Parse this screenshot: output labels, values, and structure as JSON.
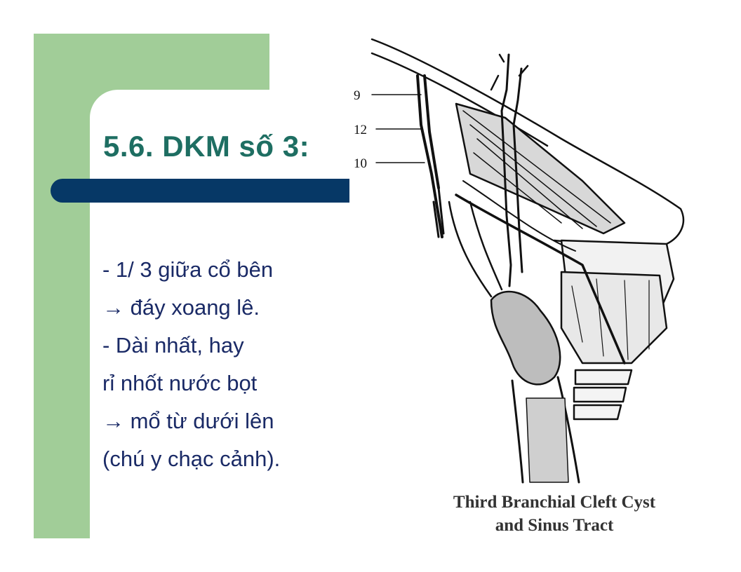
{
  "slide": {
    "title": "5.6. DKM số 3:",
    "body_lines": [
      " - 1/ 3 giữa cổ bên",
      "→ đáy xoang lê.",
      " - Dài nhất, hay",
      "rỉ nhốt nước bọt",
      "→ mổ từ dưới lên",
      "(chú y chạc cảnh)."
    ]
  },
  "figure": {
    "labels": [
      "9",
      "12",
      "10"
    ],
    "caption_line1": "Third Branchial Cleft Cyst",
    "caption_line2": "and Sinus Tract"
  },
  "colors": {
    "green_panel": "#a1cd98",
    "title": "#1e6e62",
    "title_bar": "#063866",
    "body_text": "#1a2a66"
  }
}
